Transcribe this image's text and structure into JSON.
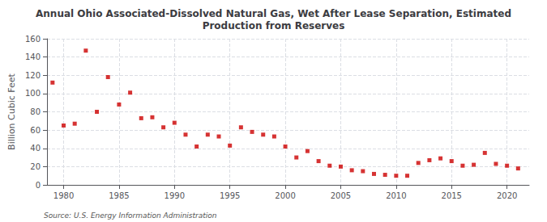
{
  "chart_data": {
    "type": "scatter",
    "title": "Annual Ohio Associated-Dissolved Natural Gas, Wet After Lease Separation, Estimated\nProduction from Reserves",
    "ylabel": "Billion Cubic Feet",
    "source": "Source: U.S. Energy Information Administration",
    "x": [
      1979,
      1980,
      1981,
      1982,
      1983,
      1984,
      1985,
      1986,
      1987,
      1988,
      1989,
      1990,
      1991,
      1992,
      1993,
      1994,
      1995,
      1996,
      1997,
      1998,
      1999,
      2000,
      2001,
      2002,
      2003,
      2004,
      2005,
      2006,
      2007,
      2008,
      2009,
      2010,
      2011,
      2012,
      2013,
      2014,
      2015,
      2016,
      2017,
      2018,
      2019,
      2020,
      2021
    ],
    "values": [
      112,
      65,
      67,
      147,
      80,
      118,
      88,
      101,
      73,
      74,
      63,
      68,
      55,
      42,
      55,
      53,
      43,
      63,
      58,
      55,
      53,
      42,
      30,
      37,
      26,
      21,
      20,
      16,
      15,
      12,
      11,
      10,
      10,
      24,
      27,
      29,
      26,
      21,
      22,
      35,
      23,
      21,
      18
    ],
    "color": "#cc0000",
    "marker": "square",
    "xlim": [
      1978.5,
      2022
    ],
    "xticks": [
      1980,
      1985,
      1990,
      1995,
      2000,
      2005,
      2010,
      2015,
      2020
    ],
    "ylim": [
      0,
      160
    ],
    "yticks": [
      0,
      20,
      40,
      60,
      80,
      100,
      120,
      140,
      160
    ],
    "grid": true
  }
}
